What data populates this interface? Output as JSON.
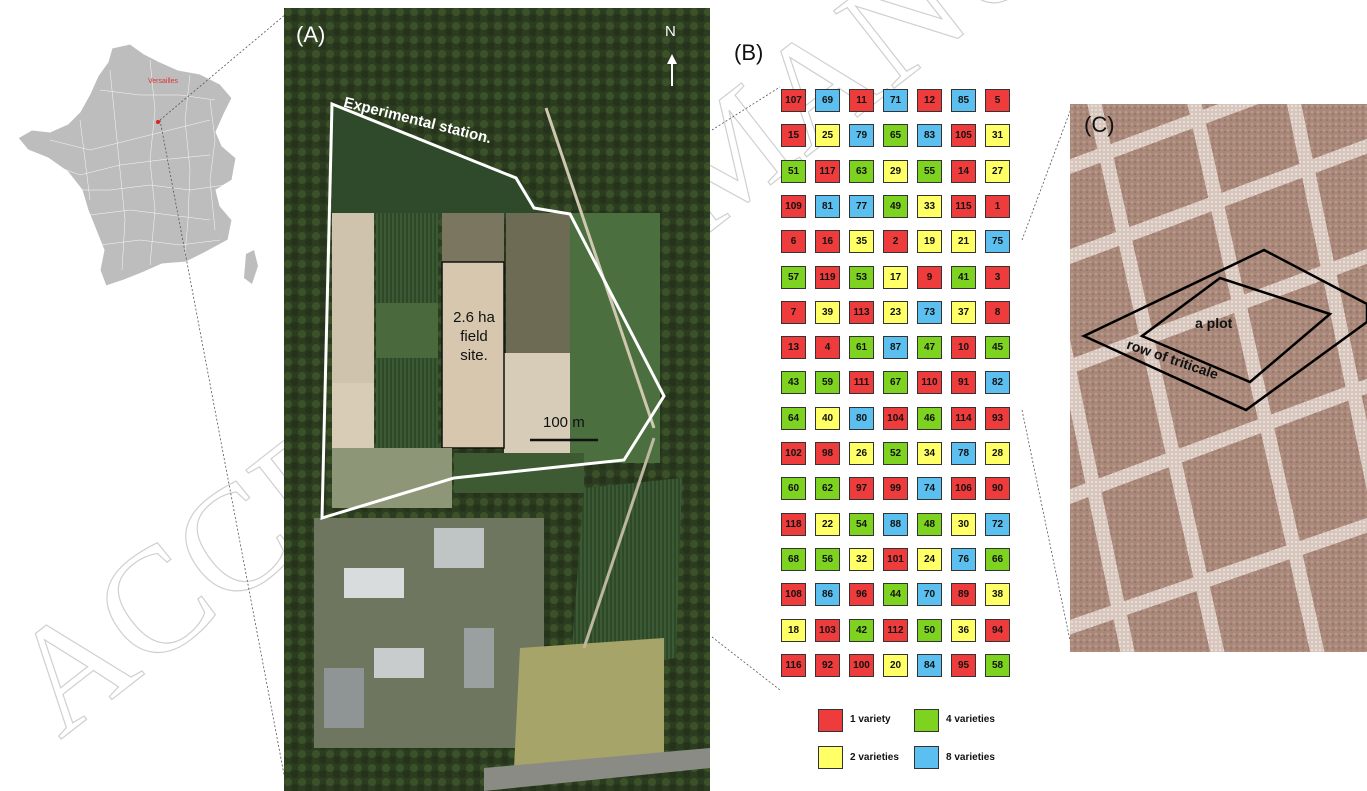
{
  "panels": {
    "a": "(A)",
    "b": "(B)",
    "c": "(C)"
  },
  "map": {
    "city_label": "Versailles"
  },
  "aerial": {
    "north": "N",
    "station": "Experimental station.",
    "field_line1": "2.6 ha",
    "field_line2": "field",
    "field_line3": "site.",
    "scale": "100 m"
  },
  "grid": {
    "columns": 7,
    "rows": [
      [
        [
          107,
          1
        ],
        [
          69,
          8
        ],
        [
          11,
          1
        ],
        [
          71,
          8
        ],
        [
          12,
          1
        ],
        [
          85,
          8
        ],
        [
          5,
          1
        ]
      ],
      [
        [
          15,
          1
        ],
        [
          25,
          2
        ],
        [
          79,
          8
        ],
        [
          65,
          4
        ],
        [
          83,
          8
        ],
        [
          105,
          1
        ],
        [
          31,
          2
        ]
      ],
      [
        [
          51,
          4
        ],
        [
          117,
          1
        ],
        [
          63,
          4
        ],
        [
          29,
          2
        ],
        [
          55,
          4
        ],
        [
          14,
          1
        ],
        [
          27,
          2
        ]
      ],
      [
        [
          109,
          1
        ],
        [
          81,
          8
        ],
        [
          77,
          8
        ],
        [
          49,
          4
        ],
        [
          33,
          2
        ],
        [
          115,
          1
        ],
        [
          1,
          1
        ]
      ],
      [
        [
          6,
          1
        ],
        [
          16,
          1
        ],
        [
          35,
          2
        ],
        [
          2,
          1
        ],
        [
          19,
          2
        ],
        [
          21,
          2
        ],
        [
          75,
          8
        ]
      ],
      [
        [
          57,
          4
        ],
        [
          119,
          1
        ],
        [
          53,
          4
        ],
        [
          17,
          2
        ],
        [
          9,
          1
        ],
        [
          41,
          4
        ],
        [
          3,
          1
        ]
      ],
      [
        [
          7,
          1
        ],
        [
          39,
          2
        ],
        [
          113,
          1
        ],
        [
          23,
          2
        ],
        [
          73,
          8
        ],
        [
          37,
          2
        ],
        [
          8,
          1
        ]
      ],
      [
        [
          13,
          1
        ],
        [
          4,
          1
        ],
        [
          61,
          4
        ],
        [
          87,
          8
        ],
        [
          47,
          4
        ],
        [
          10,
          1
        ],
        [
          45,
          4
        ]
      ],
      [
        [
          43,
          4
        ],
        [
          59,
          4
        ],
        [
          111,
          1
        ],
        [
          67,
          4
        ],
        [
          110,
          1
        ],
        [
          91,
          1
        ],
        [
          82,
          8
        ]
      ],
      [
        [
          64,
          4
        ],
        [
          40,
          2
        ],
        [
          80,
          8
        ],
        [
          104,
          1
        ],
        [
          46,
          4
        ],
        [
          114,
          1
        ],
        [
          93,
          1
        ]
      ],
      [
        [
          102,
          1
        ],
        [
          98,
          1
        ],
        [
          26,
          2
        ],
        [
          52,
          4
        ],
        [
          34,
          2
        ],
        [
          78,
          8
        ],
        [
          28,
          2
        ]
      ],
      [
        [
          60,
          4
        ],
        [
          62,
          4
        ],
        [
          97,
          1
        ],
        [
          99,
          1
        ],
        [
          74,
          8
        ],
        [
          106,
          1
        ],
        [
          90,
          1
        ]
      ],
      [
        [
          118,
          1
        ],
        [
          22,
          2
        ],
        [
          54,
          4
        ],
        [
          88,
          8
        ],
        [
          48,
          4
        ],
        [
          30,
          2
        ],
        [
          72,
          8
        ]
      ],
      [
        [
          68,
          4
        ],
        [
          56,
          4
        ],
        [
          32,
          2
        ],
        [
          101,
          1
        ],
        [
          24,
          2
        ],
        [
          76,
          8
        ],
        [
          66,
          4
        ]
      ],
      [
        [
          108,
          1
        ],
        [
          86,
          8
        ],
        [
          96,
          1
        ],
        [
          44,
          4
        ],
        [
          70,
          8
        ],
        [
          89,
          1
        ],
        [
          38,
          2
        ]
      ],
      [
        [
          18,
          2
        ],
        [
          103,
          1
        ],
        [
          42,
          4
        ],
        [
          112,
          1
        ],
        [
          50,
          4
        ],
        [
          36,
          2
        ],
        [
          94,
          1
        ]
      ],
      [
        [
          116,
          1
        ],
        [
          92,
          1
        ],
        [
          100,
          1
        ],
        [
          20,
          2
        ],
        [
          84,
          8
        ],
        [
          95,
          1
        ],
        [
          58,
          4
        ]
      ]
    ],
    "colors": {
      "1": "#ee3b3b",
      "2": "#ffff66",
      "4": "#7ed321",
      "8": "#5bc0f0"
    }
  },
  "legend": [
    {
      "key": "1",
      "label": "1 variety"
    },
    {
      "key": "4",
      "label": "4 varieties"
    },
    {
      "key": "2",
      "label": "2 varieties"
    },
    {
      "key": "8",
      "label": "8 varieties"
    }
  ],
  "photo": {
    "plot": "a plot",
    "row": "row of triticale"
  },
  "watermark": "ACCEPTED MANUSCRIPT"
}
